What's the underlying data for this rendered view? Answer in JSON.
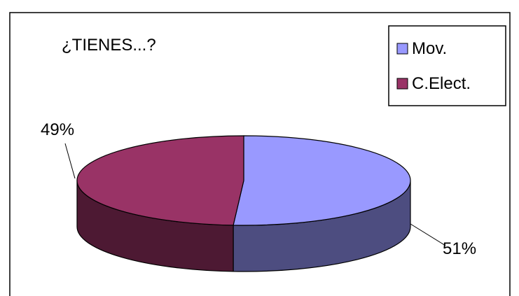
{
  "chart_data": {
    "type": "pie",
    "style": "3d",
    "title": "¿TIENES...?",
    "slices": [
      {
        "label": "Mov.",
        "value": 51,
        "display": "51%",
        "color": "#9999ff",
        "side_color": "#4d4d80"
      },
      {
        "label": "C.Elect.",
        "value": 49,
        "display": "49%",
        "color": "#993366",
        "side_color": "#4d1933"
      }
    ],
    "legend": {
      "position": "top-right"
    }
  }
}
